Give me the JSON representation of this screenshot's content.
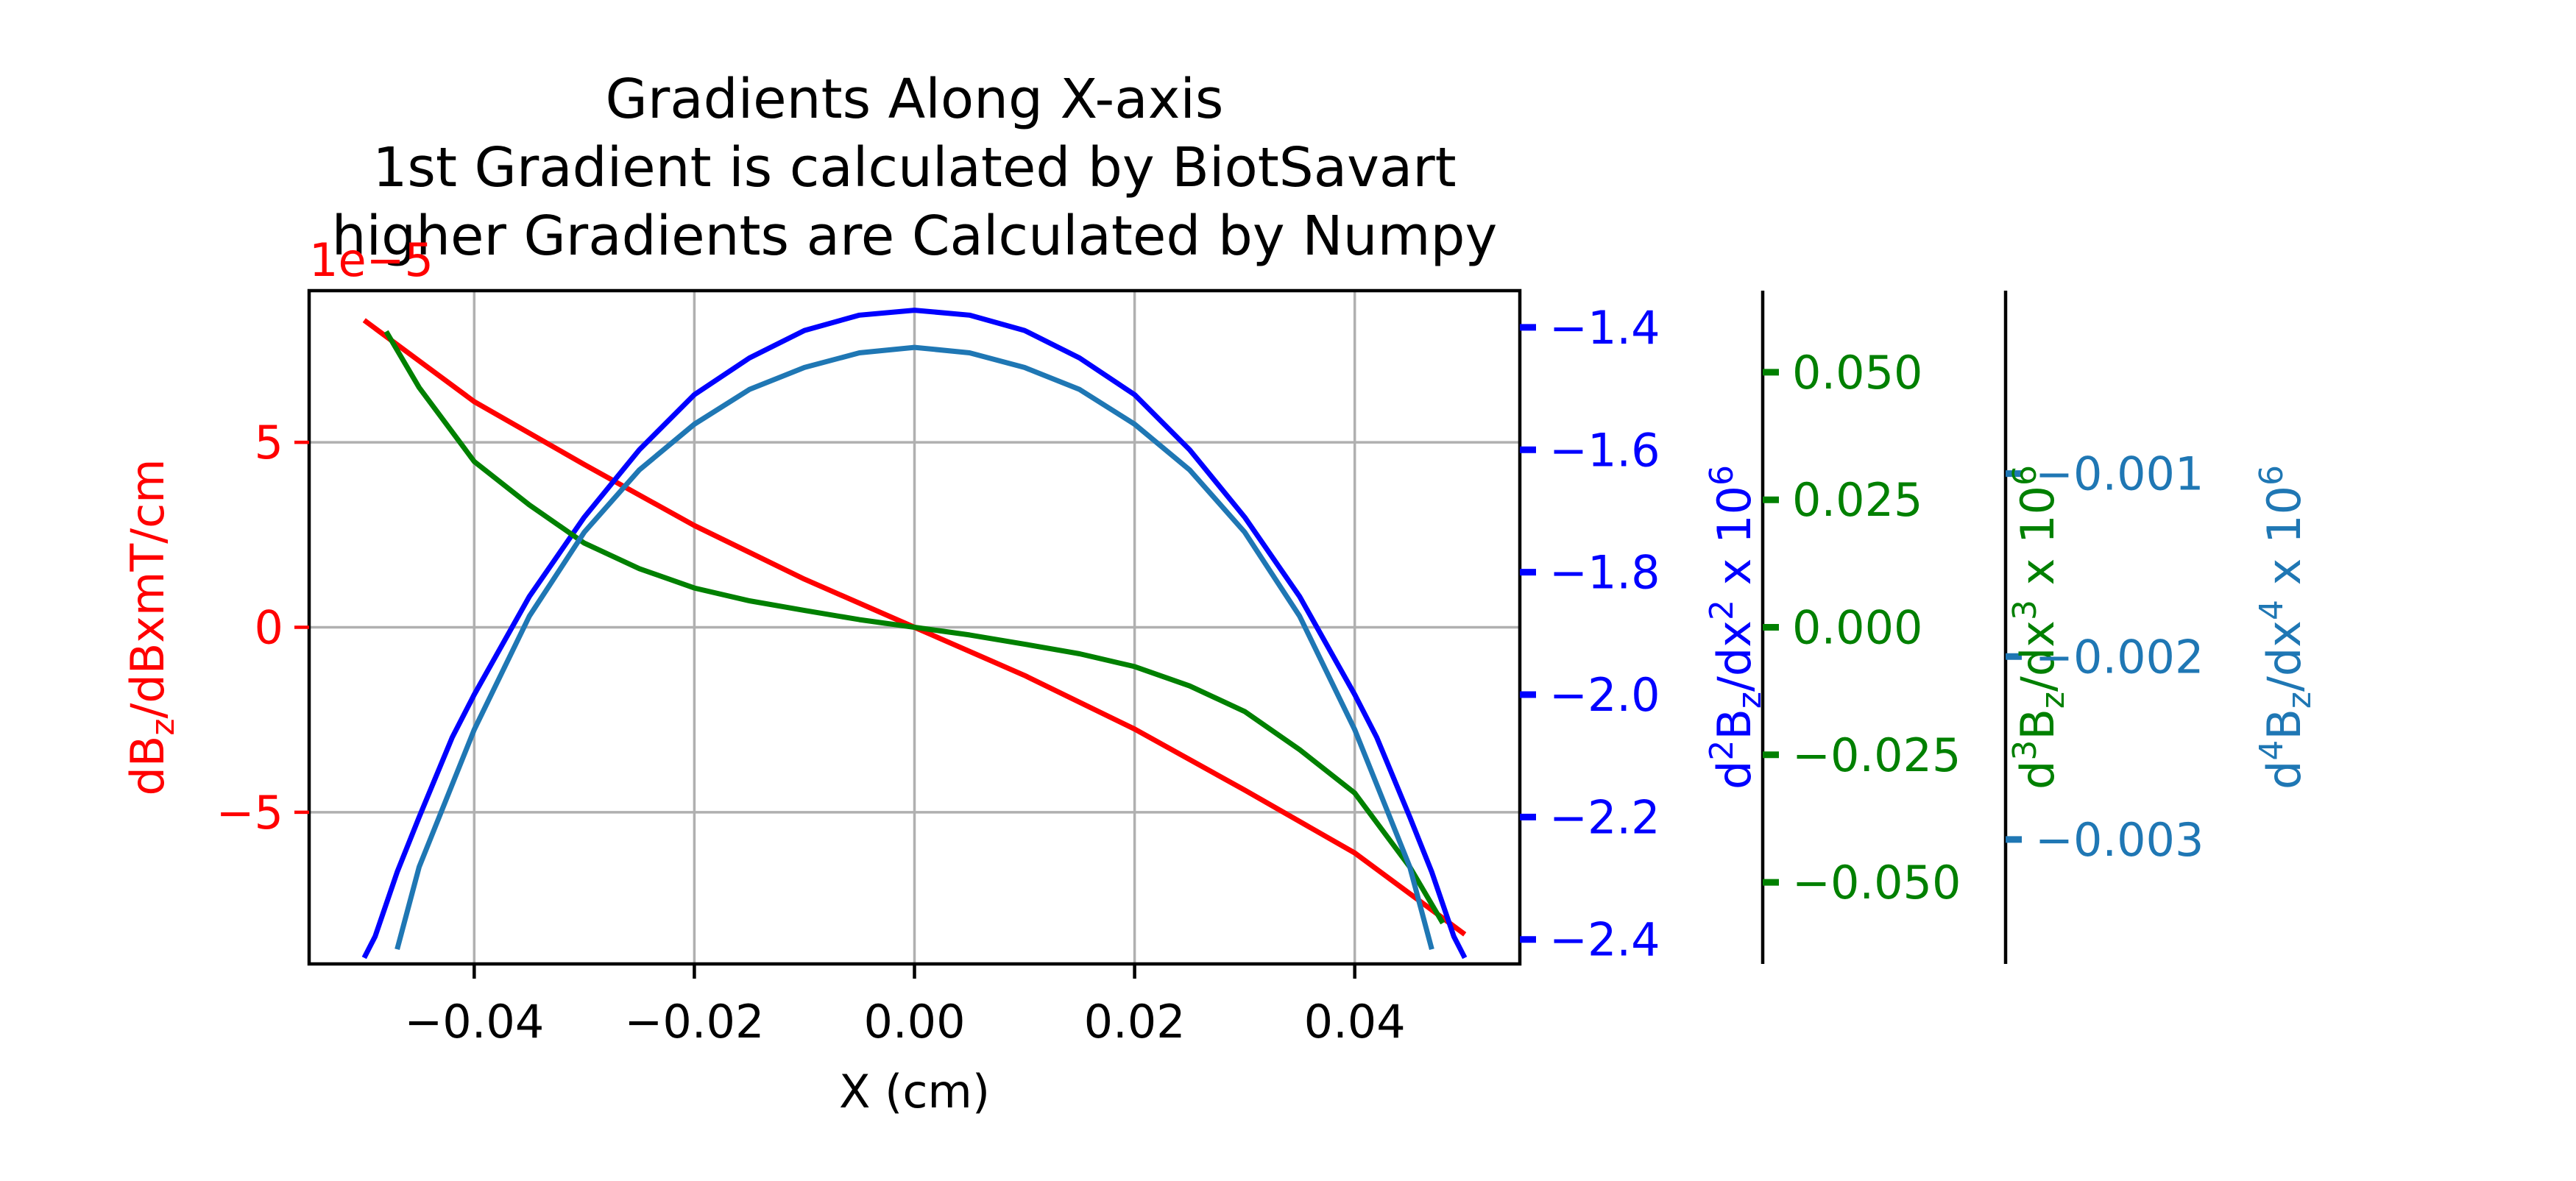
{
  "chart_data": {
    "type": "line",
    "title_lines": [
      "Gradients Along X-axis",
      "1st Gradient is calculated by BiotSavart",
      "higher Gradients are Calculated by Numpy"
    ],
    "xlabel": "X (cm)",
    "xlim": [
      -0.055,
      0.055
    ],
    "x_ticks": [
      -0.04,
      -0.02,
      0.0,
      0.02,
      0.04
    ],
    "x_tick_labels": [
      "−0.04",
      "−0.02",
      "0.00",
      "0.02",
      "0.04"
    ],
    "grid": true,
    "axes": [
      {
        "id": "ax1",
        "side": "left",
        "color": "#ff0000",
        "ylabel_main": "dB",
        "ylabel_sub": "z",
        "ylabel_rest": "/dBxmT/cm",
        "ylim": [
          -9.1,
          9.1
        ],
        "ticks": [
          -5,
          0,
          5
        ],
        "tick_labels": [
          "−5",
          "0",
          "5"
        ],
        "offset_text": "1e−5"
      },
      {
        "id": "ax2",
        "side": "right",
        "color": "#0000ff",
        "ylabel_pre": "d",
        "ylabel_sup1": "2",
        "ylabel_mid": "B",
        "ylabel_sub": "z",
        "ylabel_rest": "/dx",
        "ylabel_sup2": "2",
        "ylabel_tail": "  x 10",
        "ylabel_sup3": "6",
        "ylim": [
          -2.44,
          -1.34
        ],
        "ticks": [
          -2.4,
          -2.2,
          -2.0,
          -1.8,
          -1.6,
          -1.4
        ],
        "tick_labels": [
          "−2.4",
          "−2.2",
          "−2.0",
          "−1.8",
          "−1.6",
          "−1.4"
        ]
      },
      {
        "id": "ax3",
        "side": "right",
        "color": "#008000",
        "ylabel_pre": "d",
        "ylabel_sup1": "3",
        "ylabel_mid": "B",
        "ylabel_sub": "z",
        "ylabel_rest": "/dx",
        "ylabel_sup2": "3",
        "ylabel_tail": "  x 10",
        "ylabel_sup3": "6",
        "ylim": [
          -0.066,
          0.066
        ],
        "ticks": [
          -0.05,
          -0.025,
          0.0,
          0.025,
          0.05
        ],
        "tick_labels": [
          "−0.050",
          "−0.025",
          "0.000",
          "0.025",
          "0.050"
        ]
      },
      {
        "id": "ax4",
        "side": "right",
        "color": "#1f77b4",
        "ylabel_pre": "d",
        "ylabel_sup1": "4",
        "ylabel_mid": "B",
        "ylabel_sub": "z",
        "ylabel_rest": "/dx",
        "ylabel_sup2": "4",
        "ylabel_tail": "  x 10",
        "ylabel_sup3": "6",
        "ylim": [
          -0.00368,
          0.0
        ],
        "ticks": [
          -0.003,
          -0.002,
          -0.001
        ],
        "tick_labels": [
          "−0.003",
          "−0.002",
          "−0.001"
        ]
      }
    ],
    "series": [
      {
        "axis": "ax1",
        "color": "#ff0000",
        "x": [
          -0.05,
          -0.04,
          -0.03,
          -0.02,
          -0.01,
          0.0,
          0.01,
          0.02,
          0.03,
          0.04,
          0.05
        ],
        "y": [
          8.3,
          6.1,
          4.4,
          2.75,
          1.3,
          0.0,
          -1.3,
          -2.75,
          -4.4,
          -6.1,
          -8.3
        ]
      },
      {
        "axis": "ax2",
        "color": "#0000ff",
        "x": [
          -0.05,
          -0.049,
          -0.047,
          -0.045,
          -0.042,
          -0.04,
          -0.035,
          -0.03,
          -0.025,
          -0.02,
          -0.015,
          -0.01,
          -0.005,
          0.0,
          0.005,
          0.01,
          0.015,
          0.02,
          0.025,
          0.03,
          0.035,
          0.04,
          0.042,
          0.045,
          0.047,
          0.049,
          0.05
        ],
        "y": [
          -2.43,
          -2.395,
          -2.29,
          -2.2,
          -2.07,
          -2.0,
          -1.84,
          -1.71,
          -1.6,
          -1.51,
          -1.45,
          -1.405,
          -1.38,
          -1.372,
          -1.38,
          -1.405,
          -1.45,
          -1.51,
          -1.6,
          -1.71,
          -1.84,
          -2.0,
          -2.07,
          -2.2,
          -2.29,
          -2.395,
          -2.43
        ]
      },
      {
        "axis": "ax3",
        "color": "#008000",
        "x": [
          -0.048,
          -0.045,
          -0.04,
          -0.035,
          -0.03,
          -0.025,
          -0.02,
          -0.015,
          -0.01,
          -0.005,
          0.0,
          0.005,
          0.01,
          0.015,
          0.02,
          0.025,
          0.03,
          0.035,
          0.04,
          0.045,
          0.048
        ],
        "y": [
          0.058,
          0.047,
          0.0325,
          0.024,
          0.0165,
          0.0115,
          0.0077,
          0.0052,
          0.0033,
          0.0015,
          0.0,
          -0.0015,
          -0.0033,
          -0.0052,
          -0.0077,
          -0.0115,
          -0.0165,
          -0.024,
          -0.0325,
          -0.047,
          -0.058
        ]
      },
      {
        "axis": "ax4",
        "color": "#1f77b4",
        "x": [
          -0.047,
          -0.045,
          -0.04,
          -0.035,
          -0.03,
          -0.025,
          -0.02,
          -0.015,
          -0.01,
          -0.005,
          0.0,
          0.005,
          0.01,
          0.015,
          0.02,
          0.025,
          0.03,
          0.035,
          0.04,
          0.045,
          0.047
        ],
        "y": [
          -0.0036,
          -0.00315,
          -0.0024,
          -0.00178,
          -0.00132,
          -0.00098,
          -0.00073,
          -0.00054,
          -0.00042,
          -0.00034,
          -0.00031,
          -0.00034,
          -0.00042,
          -0.00054,
          -0.00073,
          -0.00098,
          -0.00132,
          -0.00178,
          -0.0024,
          -0.00315,
          -0.0036
        ]
      }
    ]
  }
}
